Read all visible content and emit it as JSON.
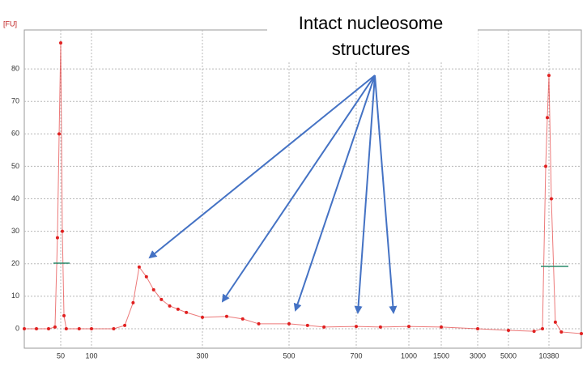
{
  "chart_data": {
    "type": "line",
    "annotation": [
      "Intact nucleosome",
      "structures"
    ],
    "y_label": "[FU]",
    "xlim": [
      20,
      12000
    ],
    "xticks": [
      50,
      100,
      300,
      500,
      700,
      1000,
      1500,
      3000,
      5000,
      10380
    ],
    "ylim": [
      -6,
      92
    ],
    "yticks": [
      0,
      10,
      20,
      30,
      40,
      50,
      60,
      70,
      80
    ],
    "grid": true,
    "series": [
      {
        "color": "#e02020",
        "x": [
          20,
          30,
          40,
          45.3,
          47.3,
          48.7,
          50,
          52.6,
          55.3,
          59,
          80,
          100,
          140,
          160,
          175,
          186,
          199,
          212,
          226,
          241,
          256,
          271,
          300,
          356,
          393,
          430,
          500,
          555,
          604,
          700,
          838,
          1000,
          1500,
          3000,
          5000,
          8400,
          9520,
          9950,
          10165,
          10380,
          10500,
          10700,
          11000,
          12000
        ],
        "values": [
          0,
          0,
          0,
          0.5,
          28,
          60,
          88,
          30,
          4,
          0,
          0,
          0,
          0,
          1,
          8,
          19,
          16,
          12,
          9,
          7,
          6,
          5,
          3.5,
          3.8,
          3,
          1.5,
          1.5,
          1,
          0.5,
          0.7,
          0.5,
          0.7,
          0.5,
          0,
          -0.5,
          -0.8,
          0,
          50,
          65,
          78,
          40,
          2,
          -1,
          -1.5
        ]
      }
    ]
  }
}
